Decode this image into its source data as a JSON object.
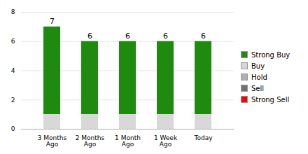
{
  "chart_data": {
    "type": "bar",
    "stacked": true,
    "categories": [
      "3 Months\nAgo",
      "2 Months\nAgo",
      "1 Month\nAgo",
      "1 Week\nAgo",
      "Today"
    ],
    "series": [
      {
        "name": "Strong Buy",
        "color": "#1e8a0e",
        "values": [
          6,
          5,
          5,
          5,
          5
        ]
      },
      {
        "name": "Buy",
        "color": "#d8d8d8",
        "values": [
          1,
          1,
          1,
          1,
          1
        ]
      },
      {
        "name": "Hold",
        "color": "#b0b0b0",
        "values": [
          0,
          0,
          0,
          0,
          0
        ]
      },
      {
        "name": "Sell",
        "color": "#707070",
        "values": [
          0,
          0,
          0,
          0,
          0
        ]
      },
      {
        "name": "Strong Sell",
        "color": "#ff0000",
        "values": [
          0,
          0,
          0,
          0,
          0
        ]
      }
    ],
    "totals": [
      7,
      6,
      6,
      6,
      6
    ],
    "ylim": [
      0,
      8
    ],
    "yticks": [
      0,
      2,
      4,
      6,
      8
    ],
    "grid": true,
    "legend": "right"
  }
}
